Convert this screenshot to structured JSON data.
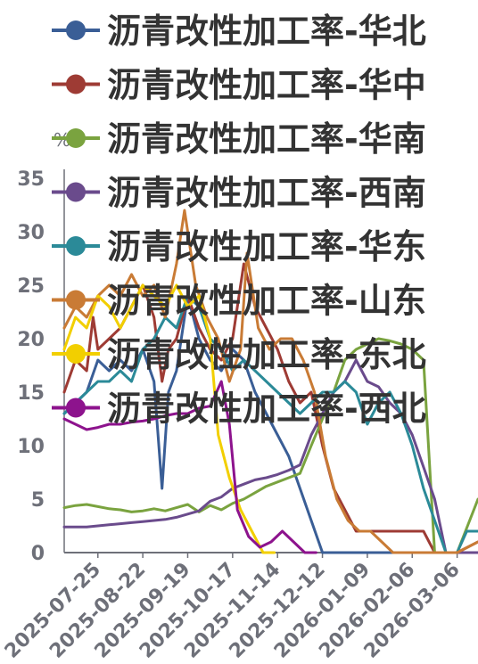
{
  "chart_data": {
    "type": "line",
    "y_unit": "%",
    "ylim": [
      0,
      35
    ],
    "y_ticks": [
      0,
      5,
      10,
      15,
      20,
      25,
      30,
      35
    ],
    "x_tick_labels": [
      "2025-07-25",
      "2025-08-22",
      "2025-09-19",
      "2025-10-17",
      "2025-11-14",
      "2025-12-12",
      "2026-01-09",
      "2026-02-06",
      "2026-03-06"
    ],
    "x_start": "2025-07-04",
    "x_end": "2026-03-19",
    "legend_position": "top",
    "grid": false,
    "series": [
      {
        "name": "沥青改性加工率-华北",
        "color": "#3a5e96",
        "points": [
          [
            "2025-07-04",
            13
          ],
          [
            "2025-07-11",
            14
          ],
          [
            "2025-07-18",
            15
          ],
          [
            "2025-07-25",
            18
          ],
          [
            "2025-08-01",
            17
          ],
          [
            "2025-08-08",
            18
          ],
          [
            "2025-08-15",
            17
          ],
          [
            "2025-08-22",
            19
          ],
          [
            "2025-08-29",
            16
          ],
          [
            "2025-09-03",
            6
          ],
          [
            "2025-09-07",
            15
          ],
          [
            "2025-09-12",
            17
          ],
          [
            "2025-09-19",
            24
          ],
          [
            "2025-09-26",
            20
          ],
          [
            "2025-10-03",
            18
          ],
          [
            "2025-10-10",
            17
          ],
          [
            "2025-10-17",
            19
          ],
          [
            "2025-10-24",
            18
          ],
          [
            "2025-10-31",
            15
          ],
          [
            "2025-11-07",
            13
          ],
          [
            "2025-11-14",
            11
          ],
          [
            "2025-11-21",
            9
          ],
          [
            "2025-11-28",
            6
          ],
          [
            "2025-12-05",
            3
          ],
          [
            "2025-12-12",
            0
          ],
          [
            "2026-01-09",
            0
          ],
          [
            "2026-02-06",
            0
          ],
          [
            "2026-03-06",
            0
          ],
          [
            "2026-03-19",
            0
          ]
        ]
      },
      {
        "name": "沥青改性加工率-华中",
        "color": "#9e3b34",
        "points": [
          [
            "2025-07-04",
            15
          ],
          [
            "2025-07-11",
            18
          ],
          [
            "2025-07-18",
            17
          ],
          [
            "2025-07-22",
            22
          ],
          [
            "2025-07-25",
            19
          ],
          [
            "2025-08-01",
            20
          ],
          [
            "2025-08-08",
            21
          ],
          [
            "2025-08-15",
            23
          ],
          [
            "2025-08-22",
            25
          ],
          [
            "2025-08-29",
            22
          ],
          [
            "2025-09-03",
            16
          ],
          [
            "2025-09-07",
            19
          ],
          [
            "2025-09-12",
            20
          ],
          [
            "2025-09-19",
            24
          ],
          [
            "2025-09-26",
            21
          ],
          [
            "2025-10-03",
            19
          ],
          [
            "2025-10-10",
            18
          ],
          [
            "2025-10-17",
            20
          ],
          [
            "2025-10-24",
            27
          ],
          [
            "2025-10-31",
            23
          ],
          [
            "2025-11-07",
            21
          ],
          [
            "2025-11-14",
            19
          ],
          [
            "2025-11-21",
            16
          ],
          [
            "2025-11-28",
            14
          ],
          [
            "2025-12-05",
            15
          ],
          [
            "2025-12-12",
            10
          ],
          [
            "2025-12-19",
            6
          ],
          [
            "2025-12-26",
            4
          ],
          [
            "2026-01-02",
            2
          ],
          [
            "2026-01-09",
            2
          ],
          [
            "2026-01-16",
            2
          ],
          [
            "2026-01-23",
            2
          ],
          [
            "2026-01-30",
            2
          ],
          [
            "2026-02-06",
            2
          ],
          [
            "2026-02-13",
            2
          ],
          [
            "2026-02-20",
            0
          ],
          [
            "2026-03-06",
            0
          ],
          [
            "2026-03-19",
            1
          ]
        ]
      },
      {
        "name": "沥青改性加工率-华南",
        "color": "#7aa33f",
        "points": [
          [
            "2025-07-04",
            4.2
          ],
          [
            "2025-07-11",
            4.4
          ],
          [
            "2025-07-18",
            4.5
          ],
          [
            "2025-07-25",
            4.3
          ],
          [
            "2025-08-01",
            4.1
          ],
          [
            "2025-08-08",
            4
          ],
          [
            "2025-08-15",
            3.8
          ],
          [
            "2025-08-22",
            3.9
          ],
          [
            "2025-08-29",
            4.1
          ],
          [
            "2025-09-05",
            3.9
          ],
          [
            "2025-09-12",
            4.2
          ],
          [
            "2025-09-19",
            4.5
          ],
          [
            "2025-09-26",
            3.8
          ],
          [
            "2025-10-03",
            4.4
          ],
          [
            "2025-10-10",
            4
          ],
          [
            "2025-10-17",
            4.6
          ],
          [
            "2025-10-24",
            5
          ],
          [
            "2025-10-31",
            5.6
          ],
          [
            "2025-11-07",
            6.2
          ],
          [
            "2025-11-14",
            6.6
          ],
          [
            "2025-11-21",
            7
          ],
          [
            "2025-11-28",
            7.4
          ],
          [
            "2025-12-05",
            10
          ],
          [
            "2025-12-12",
            12.5
          ],
          [
            "2025-12-19",
            15
          ],
          [
            "2025-12-26",
            18
          ],
          [
            "2026-01-02",
            19
          ],
          [
            "2026-01-09",
            19.5
          ],
          [
            "2026-01-16",
            20
          ],
          [
            "2026-01-23",
            19.8
          ],
          [
            "2026-01-30",
            19.5
          ],
          [
            "2026-02-06",
            19
          ],
          [
            "2026-02-13",
            18
          ],
          [
            "2026-02-20",
            0
          ],
          [
            "2026-02-27",
            0
          ],
          [
            "2026-03-06",
            0
          ],
          [
            "2026-03-19",
            5
          ]
        ]
      },
      {
        "name": "沥青改性加工率-西南",
        "color": "#6a4b8c",
        "points": [
          [
            "2025-07-04",
            2.4
          ],
          [
            "2025-07-11",
            2.4
          ],
          [
            "2025-07-18",
            2.4
          ],
          [
            "2025-07-25",
            2.5
          ],
          [
            "2025-08-01",
            2.6
          ],
          [
            "2025-08-08",
            2.7
          ],
          [
            "2025-08-15",
            2.8
          ],
          [
            "2025-08-22",
            2.9
          ],
          [
            "2025-08-29",
            3
          ],
          [
            "2025-09-05",
            3.1
          ],
          [
            "2025-09-12",
            3.3
          ],
          [
            "2025-09-19",
            3.6
          ],
          [
            "2025-09-26",
            3.9
          ],
          [
            "2025-10-03",
            4.8
          ],
          [
            "2025-10-10",
            5.2
          ],
          [
            "2025-10-17",
            6
          ],
          [
            "2025-10-24",
            6.4
          ],
          [
            "2025-10-31",
            6.8
          ],
          [
            "2025-11-07",
            7
          ],
          [
            "2025-11-14",
            7.3
          ],
          [
            "2025-11-21",
            7.7
          ],
          [
            "2025-11-28",
            8.2
          ],
          [
            "2025-12-05",
            11
          ],
          [
            "2025-12-12",
            13
          ],
          [
            "2025-12-19",
            15
          ],
          [
            "2025-12-26",
            16
          ],
          [
            "2026-01-02",
            18
          ],
          [
            "2026-01-09",
            16
          ],
          [
            "2026-01-16",
            15.5
          ],
          [
            "2026-01-23",
            14
          ],
          [
            "2026-01-30",
            13
          ],
          [
            "2026-02-06",
            11
          ],
          [
            "2026-02-13",
            8
          ],
          [
            "2026-02-20",
            5
          ],
          [
            "2026-02-27",
            0
          ],
          [
            "2026-03-06",
            0
          ],
          [
            "2026-03-19",
            0
          ]
        ]
      },
      {
        "name": "沥青改性加工率-华东",
        "color": "#2b8a98",
        "points": [
          [
            "2025-07-04",
            13
          ],
          [
            "2025-07-11",
            14
          ],
          [
            "2025-07-18",
            15
          ],
          [
            "2025-07-25",
            16
          ],
          [
            "2025-08-01",
            16
          ],
          [
            "2025-08-08",
            17
          ],
          [
            "2025-08-15",
            16
          ],
          [
            "2025-08-22",
            19
          ],
          [
            "2025-08-29",
            20
          ],
          [
            "2025-09-05",
            22
          ],
          [
            "2025-09-12",
            21
          ],
          [
            "2025-09-19",
            24
          ],
          [
            "2025-09-26",
            23
          ],
          [
            "2025-10-03",
            20
          ],
          [
            "2025-10-10",
            19
          ],
          [
            "2025-10-17",
            17
          ],
          [
            "2025-10-24",
            18
          ],
          [
            "2025-10-31",
            17
          ],
          [
            "2025-11-07",
            16
          ],
          [
            "2025-11-14",
            15
          ],
          [
            "2025-11-21",
            14
          ],
          [
            "2025-11-28",
            13
          ],
          [
            "2025-12-05",
            14
          ],
          [
            "2025-12-12",
            15
          ],
          [
            "2025-12-19",
            15
          ],
          [
            "2025-12-26",
            16
          ],
          [
            "2026-01-02",
            15
          ],
          [
            "2026-01-09",
            12
          ],
          [
            "2026-01-16",
            14
          ],
          [
            "2026-01-23",
            15
          ],
          [
            "2026-01-30",
            13
          ],
          [
            "2026-02-06",
            10
          ],
          [
            "2026-02-13",
            6
          ],
          [
            "2026-02-20",
            3
          ],
          [
            "2026-02-27",
            0
          ],
          [
            "2026-03-06",
            0
          ],
          [
            "2026-03-12",
            2
          ],
          [
            "2026-03-19",
            2
          ]
        ]
      },
      {
        "name": "沥青改性加工率-山东",
        "color": "#c97b35",
        "points": [
          [
            "2025-07-04",
            21
          ],
          [
            "2025-07-11",
            23
          ],
          [
            "2025-07-18",
            22
          ],
          [
            "2025-07-25",
            24
          ],
          [
            "2025-08-01",
            25
          ],
          [
            "2025-08-08",
            24
          ],
          [
            "2025-08-15",
            26
          ],
          [
            "2025-08-22",
            24
          ],
          [
            "2025-08-29",
            25
          ],
          [
            "2025-09-05",
            22
          ],
          [
            "2025-09-12",
            27
          ],
          [
            "2025-09-17",
            32
          ],
          [
            "2025-09-24",
            25
          ],
          [
            "2025-10-01",
            22
          ],
          [
            "2025-10-08",
            20
          ],
          [
            "2025-10-15",
            16
          ],
          [
            "2025-10-22",
            19
          ],
          [
            "2025-10-26",
            28
          ],
          [
            "2025-11-02",
            21
          ],
          [
            "2025-11-09",
            19
          ],
          [
            "2025-11-16",
            20
          ],
          [
            "2025-11-23",
            20
          ],
          [
            "2025-11-30",
            18
          ],
          [
            "2025-12-07",
            15
          ],
          [
            "2025-12-14",
            9
          ],
          [
            "2025-12-21",
            5
          ],
          [
            "2025-12-28",
            3
          ],
          [
            "2026-01-04",
            2
          ],
          [
            "2026-01-11",
            2
          ],
          [
            "2026-01-18",
            1
          ],
          [
            "2026-01-25",
            0
          ],
          [
            "2026-03-06",
            0
          ],
          [
            "2026-03-19",
            1
          ]
        ]
      },
      {
        "name": "沥青改性加工率-东北",
        "color": "#f2cf00",
        "points": [
          [
            "2025-07-04",
            19
          ],
          [
            "2025-07-11",
            22
          ],
          [
            "2025-07-18",
            21
          ],
          [
            "2025-07-25",
            24
          ],
          [
            "2025-08-01",
            23
          ],
          [
            "2025-08-08",
            21
          ],
          [
            "2025-08-15",
            23
          ],
          [
            "2025-08-22",
            25
          ],
          [
            "2025-08-29",
            24
          ],
          [
            "2025-09-05",
            23
          ],
          [
            "2025-09-12",
            25
          ],
          [
            "2025-09-19",
            23
          ],
          [
            "2025-09-26",
            24
          ],
          [
            "2025-10-03",
            20
          ],
          [
            "2025-10-08",
            11
          ],
          [
            "2025-10-15",
            7
          ],
          [
            "2025-10-22",
            4
          ],
          [
            "2025-10-29",
            2
          ],
          [
            "2025-11-05",
            0
          ],
          [
            "2025-11-12",
            0
          ]
        ]
      },
      {
        "name": "沥青改性加工率-西北",
        "color": "#8d138d",
        "points": [
          [
            "2025-07-04",
            12.5
          ],
          [
            "2025-07-11",
            12
          ],
          [
            "2025-07-18",
            11.5
          ],
          [
            "2025-07-25",
            11.7
          ],
          [
            "2025-08-01",
            12
          ],
          [
            "2025-08-08",
            12
          ],
          [
            "2025-08-15",
            12.2
          ],
          [
            "2025-08-22",
            12.3
          ],
          [
            "2025-08-29",
            12.5
          ],
          [
            "2025-09-05",
            12.8
          ],
          [
            "2025-09-12",
            13
          ],
          [
            "2025-09-19",
            13
          ],
          [
            "2025-09-26",
            13.5
          ],
          [
            "2025-10-03",
            13.7
          ],
          [
            "2025-10-10",
            16
          ],
          [
            "2025-10-15",
            12
          ],
          [
            "2025-10-20",
            4
          ],
          [
            "2025-10-27",
            1.5
          ],
          [
            "2025-11-03",
            0.5
          ],
          [
            "2025-11-10",
            1
          ],
          [
            "2025-11-17",
            2
          ],
          [
            "2025-11-24",
            1
          ],
          [
            "2025-12-01",
            0
          ],
          [
            "2025-12-08",
            0
          ]
        ]
      }
    ]
  }
}
